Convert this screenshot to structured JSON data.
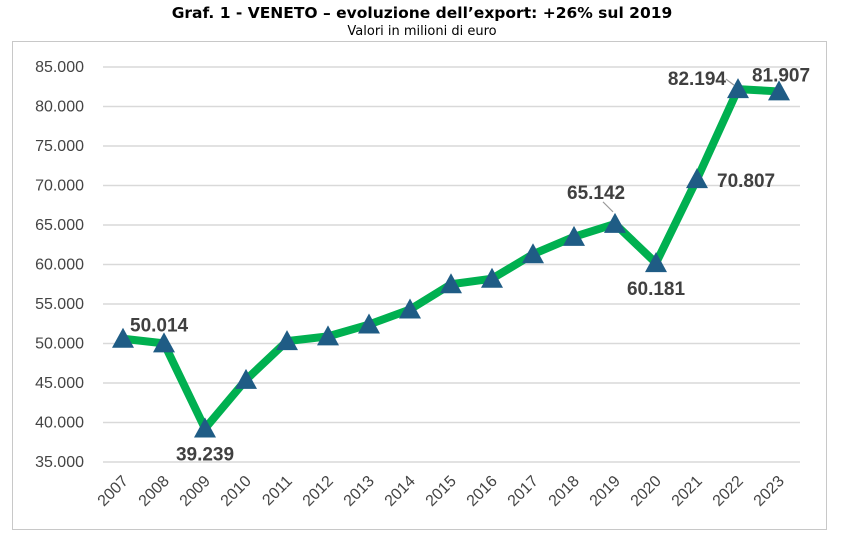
{
  "chart_data": {
    "type": "line",
    "title": "Graf. 1 - VENETO – evoluzione dell’export: +26% sul 2019",
    "subtitle": "Valori in milioni di euro",
    "xlabel": "",
    "ylabel": "",
    "categories": [
      "2007",
      "2008",
      "2009",
      "2010",
      "2011",
      "2012",
      "2013",
      "2014",
      "2015",
      "2016",
      "2017",
      "2018",
      "2019",
      "2020",
      "2021",
      "2022",
      "2023"
    ],
    "values": [
      50600,
      50014,
      39239,
      45400,
      50300,
      50900,
      52400,
      54300,
      57500,
      58200,
      61300,
      63500,
      65142,
      60181,
      70807,
      82194,
      81907
    ],
    "data_labels": {
      "2008": "50.014",
      "2009": "39.239",
      "2019": "65.142",
      "2020": "60.181",
      "2021": "70.807",
      "2022": "82.194",
      "2023": "81.907"
    },
    "yticks": [
      "35.000",
      "40.000",
      "45.000",
      "50.000",
      "55.000",
      "60.000",
      "65.000",
      "70.000",
      "75.000",
      "80.000",
      "85.000"
    ],
    "ylim": [
      35000,
      85000
    ],
    "grid": true,
    "legend": "none",
    "colors": {
      "line": "#00b050",
      "marker": "#1f5c85",
      "grid": "#d9d9d9"
    },
    "marker": "triangle"
  }
}
